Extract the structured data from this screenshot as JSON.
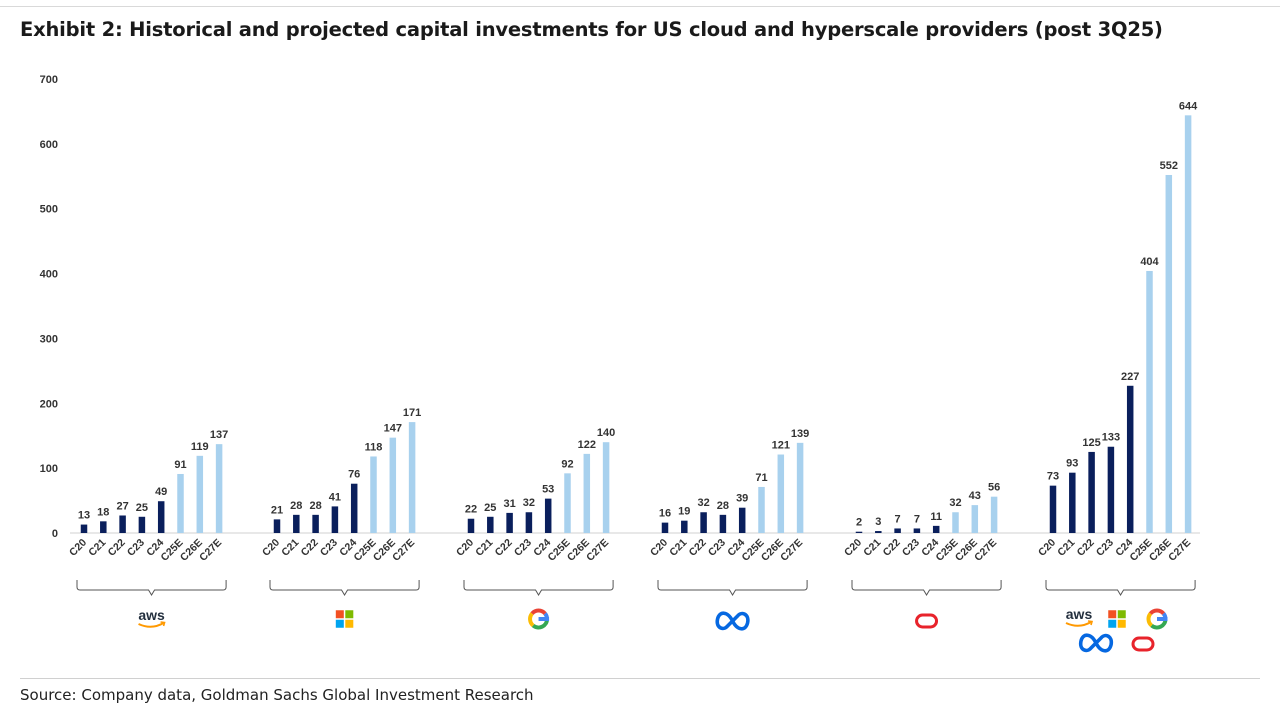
{
  "title": "Exhibit 2: Historical and projected capital investments for US cloud and hyperscale providers (post 3Q25)",
  "source": "Source: Company data, Goldman Sachs Global Investment Research",
  "colors": {
    "historical": "#0a1f5c",
    "projected": "#a8d1ee",
    "meta_blue": "#0668e1",
    "oracle_red": "#e8232b",
    "aws_orange": "#ff9900"
  },
  "chart_data": {
    "type": "bar",
    "title": "Exhibit 2: Historical and projected capital investments for US cloud and hyperscale providers (post 3Q25)",
    "xlabel": "",
    "ylabel": "",
    "ylim": [
      0,
      700
    ],
    "yticks": [
      0,
      100,
      200,
      300,
      400,
      500,
      600,
      700
    ],
    "categories": [
      "C20",
      "C21",
      "C22",
      "C23",
      "C24",
      "C25E",
      "C26E",
      "C27E"
    ],
    "projected_from_index": 5,
    "groups": [
      {
        "name": "Amazon (AWS)",
        "logo": "aws-logo",
        "values": [
          13,
          18,
          27,
          25,
          49,
          91,
          119,
          137
        ]
      },
      {
        "name": "Microsoft",
        "logo": "microsoft-logo",
        "values": [
          21,
          28,
          28,
          41,
          76,
          118,
          147,
          171
        ]
      },
      {
        "name": "Google",
        "logo": "google-logo",
        "values": [
          22,
          25,
          31,
          32,
          53,
          92,
          122,
          140
        ]
      },
      {
        "name": "Meta",
        "logo": "meta-logo",
        "values": [
          16,
          19,
          32,
          28,
          39,
          71,
          121,
          139
        ]
      },
      {
        "name": "Oracle",
        "logo": "oracle-logo",
        "values": [
          2,
          3,
          7,
          7,
          11,
          32,
          43,
          56
        ]
      },
      {
        "name": "Total",
        "logo": "combined-logos",
        "values": [
          73,
          93,
          125,
          133,
          227,
          404,
          552,
          644
        ]
      }
    ],
    "logo_texts": {
      "aws": "aws"
    }
  }
}
